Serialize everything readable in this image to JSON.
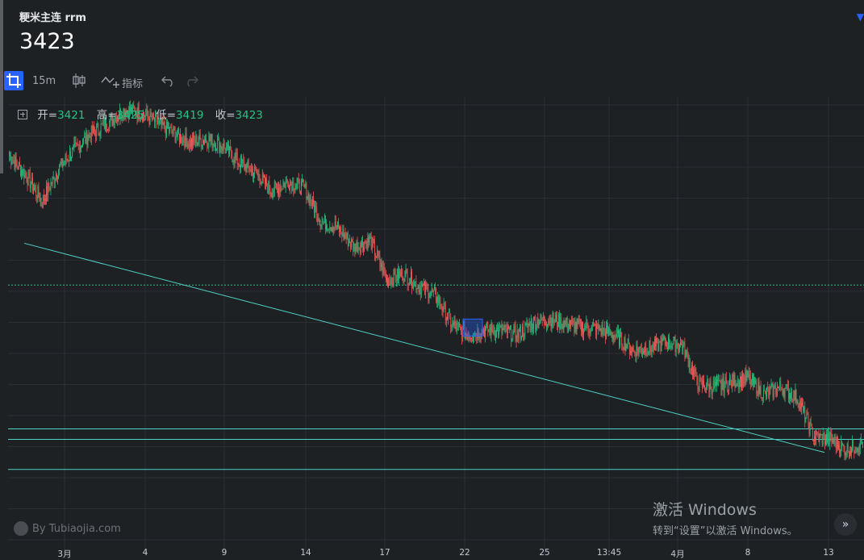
{
  "header": {
    "title": "粳米主连 rrm",
    "price": "3423"
  },
  "toolbar": {
    "interval": "15m",
    "indicators_label": "指标"
  },
  "ohlc": {
    "open_label": "开=",
    "open": "3421",
    "high_label": "高=",
    "high": "3425",
    "low_label": "低=",
    "low": "3419",
    "close_label": "收=",
    "close": "3423"
  },
  "colors": {
    "background": "#1e2124",
    "up": "#26c281",
    "down": "#ef5350",
    "accent": "#2962ff",
    "trend_line": "#4fd1c5",
    "grid": "#2b2f33"
  },
  "watermark": "By Tubiaojia.com",
  "activation": {
    "title": "激活 Windows",
    "subtitle": "转到“设置”以激活 Windows。"
  },
  "scroll_button": "»",
  "icons": {
    "crop": "crop-icon",
    "candle": "candlestick-icon",
    "indicator": "indicator-icon",
    "undo": "undo-icon",
    "redo": "redo-icon",
    "toggle": "plus-square-icon",
    "scroll": "chevron-double-right-icon"
  },
  "chart_data": {
    "type": "candlestick",
    "interval": "15m",
    "x_ticks": [
      "3月",
      "4",
      "9",
      "14",
      "17",
      "22",
      "25",
      "13:45",
      "4月",
      "8",
      "13"
    ],
    "ylim": [
      3350,
      3700
    ],
    "series": [
      {
        "values": [
          3655,
          3640,
          3620,
          3645,
          3660,
          3672,
          3680,
          3690,
          3688,
          3680,
          3672,
          3665,
          3668,
          3662,
          3650,
          3642,
          3628,
          3635,
          3630,
          3605,
          3600,
          3585,
          3590,
          3560,
          3565,
          3555,
          3548,
          3525,
          3518,
          3522,
          3521,
          3518,
          3528,
          3530,
          3526,
          3524,
          3522,
          3517,
          3506,
          3508,
          3512,
          3510,
          3480,
          3478,
          3482,
          3485,
          3472,
          3478,
          3470,
          3440,
          3438,
          3430,
          3435
        ]
      }
    ],
    "horizontal_lines": [
      3556,
      3446,
      3438,
      3415
    ],
    "trendline": {
      "from": [
        "3月",
        3588
      ],
      "to": [
        "13",
        3428
      ]
    },
    "highlight_box": {
      "x": "22",
      "y_range": [
        3517,
        3530
      ]
    }
  }
}
